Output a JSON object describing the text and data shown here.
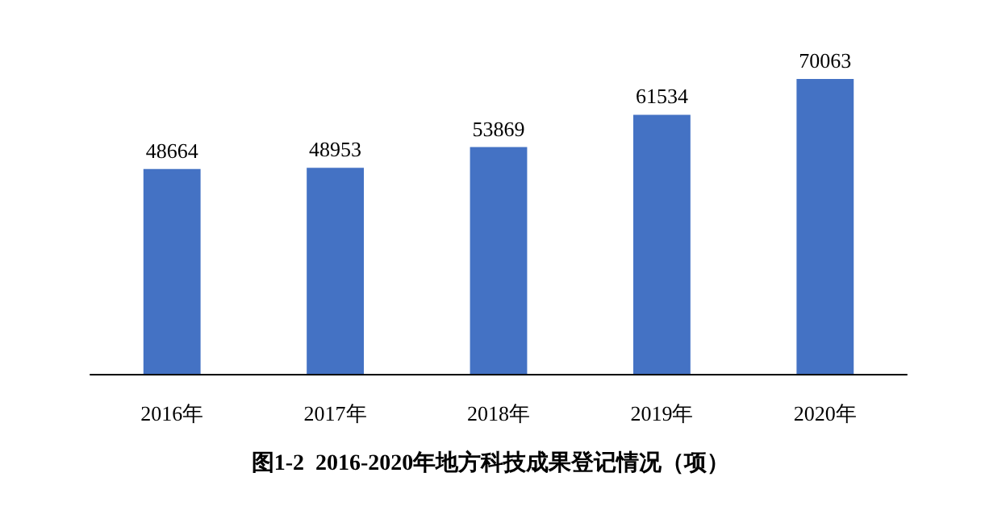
{
  "chart_data": {
    "type": "bar",
    "title": "图1-2  2016-2020年地方科技成果登记情况（项）",
    "categories": [
      "2016年",
      "2017年",
      "2018年",
      "2019年",
      "2020年"
    ],
    "values": [
      48664,
      48953,
      53869,
      61534,
      70063
    ],
    "color": "#4472c4",
    "data_labels": true
  }
}
